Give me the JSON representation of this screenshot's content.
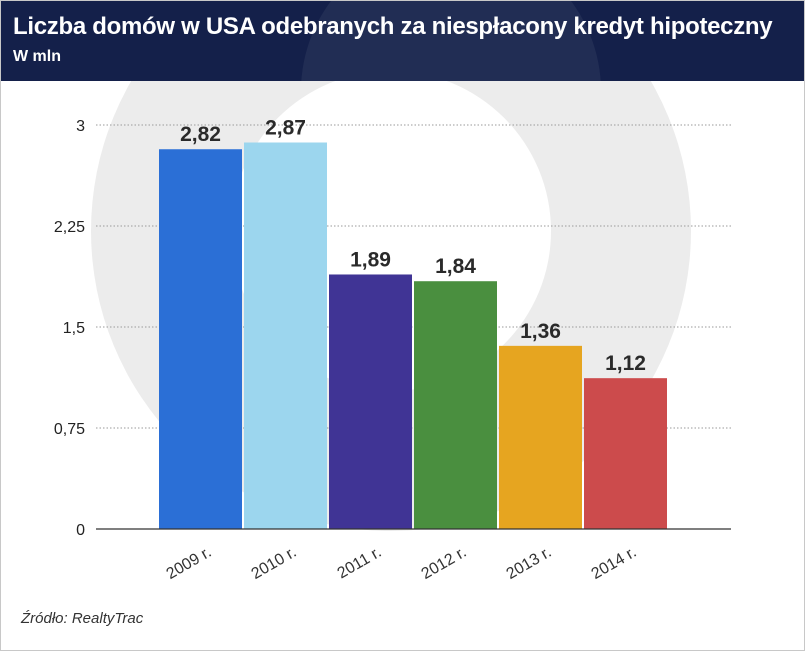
{
  "header": {
    "title": "Liczba domów w USA odebranych za niespłacony kredyt hipoteczny",
    "subtitle": "W mln"
  },
  "footer": {
    "source": "Źródło: RealtyTrac"
  },
  "colors": {
    "header_bg": "#14204a",
    "bar_colors": [
      "#2b6fd6",
      "#9cd6ee",
      "#403495",
      "#4a8f3f",
      "#e6a520",
      "#cc4b4c"
    ]
  },
  "chart_data": {
    "type": "bar",
    "title": "Liczba domów w USA odebranych za niespłacony kredyt hipoteczny",
    "subtitle": "W mln",
    "xlabel": "",
    "ylabel": "",
    "categories": [
      "2009 r.",
      "2010 r.",
      "2011 r.",
      "2012 r.",
      "2013 r.",
      "2014 r."
    ],
    "values": [
      2.82,
      2.87,
      1.89,
      1.84,
      1.36,
      1.12
    ],
    "value_labels": [
      "2,82",
      "2,87",
      "1,89",
      "1,84",
      "1,36",
      "1,12"
    ],
    "yticks": [
      0,
      0.75,
      1.5,
      2.25,
      3
    ],
    "ytick_labels": [
      "0",
      "0,75",
      "1,5",
      "2,25",
      "3"
    ],
    "ylim": [
      0,
      3
    ],
    "grid": true,
    "legend": "none"
  }
}
